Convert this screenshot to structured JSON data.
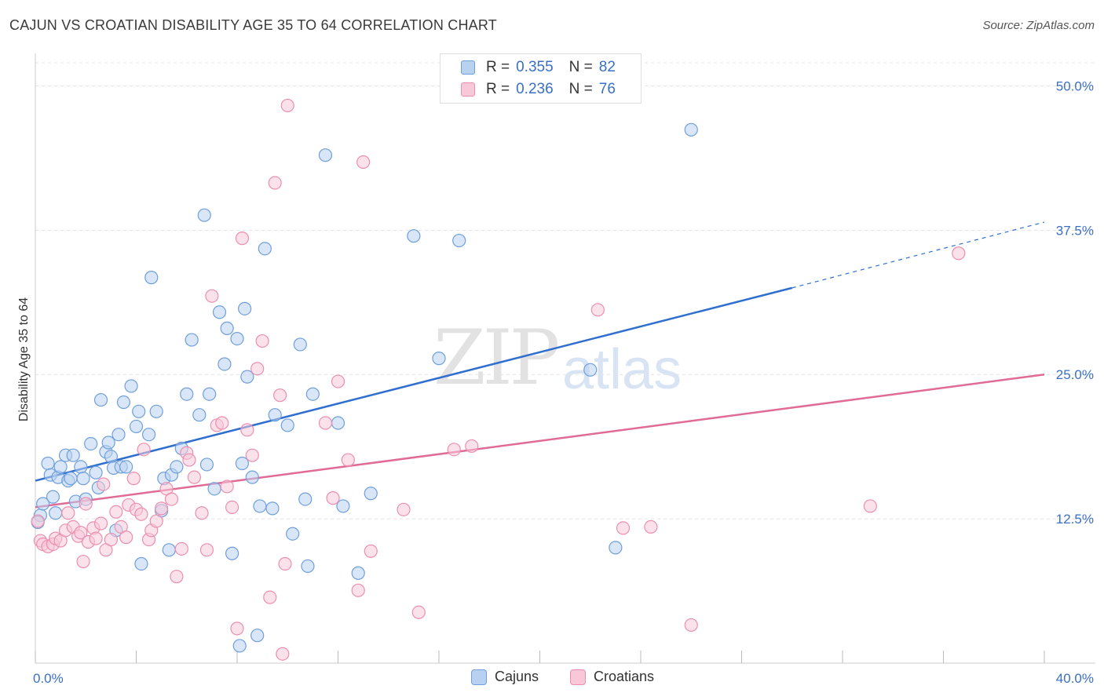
{
  "header": {
    "title": "CAJUN VS CROATIAN DISABILITY AGE 35 TO 64 CORRELATION CHART",
    "source": "Source: ZipAtlas.com"
  },
  "watermark": {
    "zip": "ZIP",
    "atlas": "atlas"
  },
  "legend_top": {
    "rows": [
      {
        "r_label": "R =",
        "r_value": "0.355",
        "n_label": "N =",
        "n_value": "82",
        "color": "#a8c6ee"
      },
      {
        "r_label": "R =",
        "r_value": "0.236",
        "n_label": "N =",
        "n_value": "76",
        "color": "#f6b8cc"
      }
    ]
  },
  "legend_bottom": {
    "cajuns": "Cajuns",
    "croatians": "Croatians"
  },
  "chart_data": {
    "type": "scatter",
    "title": "CAJUN VS CROATIAN DISABILITY AGE 35 TO 64 CORRELATION CHART",
    "xlabel": "",
    "ylabel": "Disability Age 35 to 64",
    "xlim": [
      0,
      40
    ],
    "ylim": [
      0,
      52
    ],
    "x_tick_labels": [
      "0.0%",
      "40.0%"
    ],
    "y_tick_labels": [
      "12.5%",
      "25.0%",
      "37.5%",
      "50.0%"
    ],
    "y_ticks": [
      12.5,
      25.0,
      37.5,
      50.0
    ],
    "grid": true,
    "legend_position": "bottom",
    "series": [
      {
        "name": "Cajuns",
        "color": "#6f9fdc",
        "fill": "#b9d1f1",
        "trend": {
          "x0": 0,
          "y0": 15.8,
          "x1": 30,
          "y1": 32.5,
          "dash_to_x": 40,
          "dash_to_y": 38.2,
          "color": "#2f6fd0"
        },
        "points": [
          [
            0.2,
            12.8
          ],
          [
            0.3,
            13.8
          ],
          [
            0.5,
            17.3
          ],
          [
            0.6,
            16.3
          ],
          [
            0.7,
            14.4
          ],
          [
            0.8,
            13.0
          ],
          [
            0.9,
            16.1
          ],
          [
            1.0,
            17.0
          ],
          [
            1.2,
            18.0
          ],
          [
            1.3,
            15.8
          ],
          [
            1.4,
            16.0
          ],
          [
            1.5,
            18.0
          ],
          [
            1.6,
            14.0
          ],
          [
            1.8,
            17.0
          ],
          [
            1.9,
            16.0
          ],
          [
            2.0,
            14.2
          ],
          [
            2.2,
            19.0
          ],
          [
            2.4,
            16.5
          ],
          [
            2.5,
            15.2
          ],
          [
            2.6,
            22.8
          ],
          [
            2.8,
            18.3
          ],
          [
            2.9,
            19.1
          ],
          [
            3.0,
            17.9
          ],
          [
            3.1,
            16.9
          ],
          [
            3.3,
            19.8
          ],
          [
            3.4,
            17.0
          ],
          [
            3.5,
            22.6
          ],
          [
            3.6,
            17.0
          ],
          [
            3.8,
            24.0
          ],
          [
            4.0,
            20.5
          ],
          [
            4.1,
            21.8
          ],
          [
            4.2,
            8.6
          ],
          [
            4.5,
            19.8
          ],
          [
            4.6,
            33.4
          ],
          [
            4.8,
            21.8
          ],
          [
            5.0,
            13.2
          ],
          [
            5.1,
            16.0
          ],
          [
            5.3,
            9.8
          ],
          [
            5.4,
            16.3
          ],
          [
            5.6,
            17.0
          ],
          [
            5.8,
            18.6
          ],
          [
            6.0,
            23.3
          ],
          [
            6.2,
            28.0
          ],
          [
            6.5,
            21.5
          ],
          [
            6.7,
            38.8
          ],
          [
            6.8,
            17.2
          ],
          [
            6.9,
            23.3
          ],
          [
            7.1,
            15.1
          ],
          [
            7.3,
            30.4
          ],
          [
            7.5,
            25.9
          ],
          [
            7.6,
            29.0
          ],
          [
            7.8,
            9.5
          ],
          [
            8.0,
            28.1
          ],
          [
            8.1,
            1.5
          ],
          [
            8.2,
            17.3
          ],
          [
            8.3,
            30.7
          ],
          [
            8.4,
            24.8
          ],
          [
            8.6,
            16.1
          ],
          [
            8.8,
            2.4
          ],
          [
            8.9,
            13.6
          ],
          [
            9.1,
            35.9
          ],
          [
            9.4,
            13.4
          ],
          [
            9.5,
            21.5
          ],
          [
            10.0,
            20.6
          ],
          [
            10.2,
            11.2
          ],
          [
            10.5,
            27.6
          ],
          [
            10.7,
            14.2
          ],
          [
            10.8,
            8.4
          ],
          [
            11.0,
            23.3
          ],
          [
            11.5,
            44.0
          ],
          [
            12.2,
            13.6
          ],
          [
            12.8,
            7.8
          ],
          [
            13.3,
            14.7
          ],
          [
            15.0,
            37.0
          ],
          [
            16.0,
            26.4
          ],
          [
            16.8,
            36.6
          ],
          [
            22.0,
            25.4
          ],
          [
            23.0,
            10.0
          ],
          [
            26.0,
            46.2
          ],
          [
            12.0,
            20.8
          ],
          [
            0.1,
            12.2
          ],
          [
            3.2,
            11.5
          ]
        ]
      },
      {
        "name": "Croatians",
        "color": "#ec8fae",
        "fill": "#f8c8d8",
        "trend": {
          "x0": 0,
          "y0": 13.5,
          "x1": 40,
          "y1": 25.0,
          "color": "#e06b97"
        },
        "points": [
          [
            0.1,
            12.3
          ],
          [
            0.2,
            10.6
          ],
          [
            0.3,
            10.3
          ],
          [
            0.5,
            10.1
          ],
          [
            0.7,
            10.3
          ],
          [
            0.8,
            10.8
          ],
          [
            1.0,
            10.6
          ],
          [
            1.2,
            11.5
          ],
          [
            1.3,
            13.0
          ],
          [
            1.5,
            11.8
          ],
          [
            1.7,
            11.0
          ],
          [
            1.8,
            11.3
          ],
          [
            1.9,
            8.8
          ],
          [
            2.0,
            13.8
          ],
          [
            2.1,
            10.5
          ],
          [
            2.3,
            11.7
          ],
          [
            2.4,
            10.8
          ],
          [
            2.6,
            12.1
          ],
          [
            2.7,
            15.5
          ],
          [
            2.8,
            9.8
          ],
          [
            3.0,
            10.7
          ],
          [
            3.2,
            13.1
          ],
          [
            3.4,
            11.8
          ],
          [
            3.6,
            10.9
          ],
          [
            3.7,
            13.7
          ],
          [
            3.9,
            16.0
          ],
          [
            4.0,
            13.3
          ],
          [
            4.2,
            12.9
          ],
          [
            4.3,
            18.5
          ],
          [
            4.5,
            10.7
          ],
          [
            4.6,
            11.5
          ],
          [
            4.8,
            12.3
          ],
          [
            5.0,
            13.4
          ],
          [
            5.2,
            15.1
          ],
          [
            5.4,
            14.2
          ],
          [
            5.6,
            7.5
          ],
          [
            5.8,
            9.9
          ],
          [
            6.0,
            18.2
          ],
          [
            6.1,
            17.6
          ],
          [
            6.3,
            16.1
          ],
          [
            6.6,
            13.0
          ],
          [
            6.8,
            9.8
          ],
          [
            7.0,
            31.8
          ],
          [
            7.2,
            20.6
          ],
          [
            7.4,
            20.8
          ],
          [
            7.6,
            15.3
          ],
          [
            7.8,
            13.5
          ],
          [
            8.0,
            3.0
          ],
          [
            8.2,
            36.8
          ],
          [
            8.4,
            20.2
          ],
          [
            8.6,
            18.0
          ],
          [
            8.8,
            25.5
          ],
          [
            9.0,
            27.9
          ],
          [
            9.3,
            5.7
          ],
          [
            9.5,
            41.6
          ],
          [
            9.7,
            23.2
          ],
          [
            9.8,
            0.8
          ],
          [
            9.9,
            8.6
          ],
          [
            10.0,
            48.3
          ],
          [
            11.5,
            20.8
          ],
          [
            11.8,
            14.3
          ],
          [
            12.0,
            24.4
          ],
          [
            12.4,
            17.6
          ],
          [
            12.8,
            6.3
          ],
          [
            13.0,
            43.4
          ],
          [
            13.3,
            9.7
          ],
          [
            14.6,
            13.3
          ],
          [
            15.2,
            4.4
          ],
          [
            16.6,
            18.5
          ],
          [
            17.3,
            18.8
          ],
          [
            22.3,
            30.6
          ],
          [
            23.3,
            11.7
          ],
          [
            24.4,
            11.8
          ],
          [
            26.0,
            3.3
          ],
          [
            33.1,
            13.6
          ],
          [
            36.6,
            35.5
          ]
        ]
      }
    ]
  }
}
